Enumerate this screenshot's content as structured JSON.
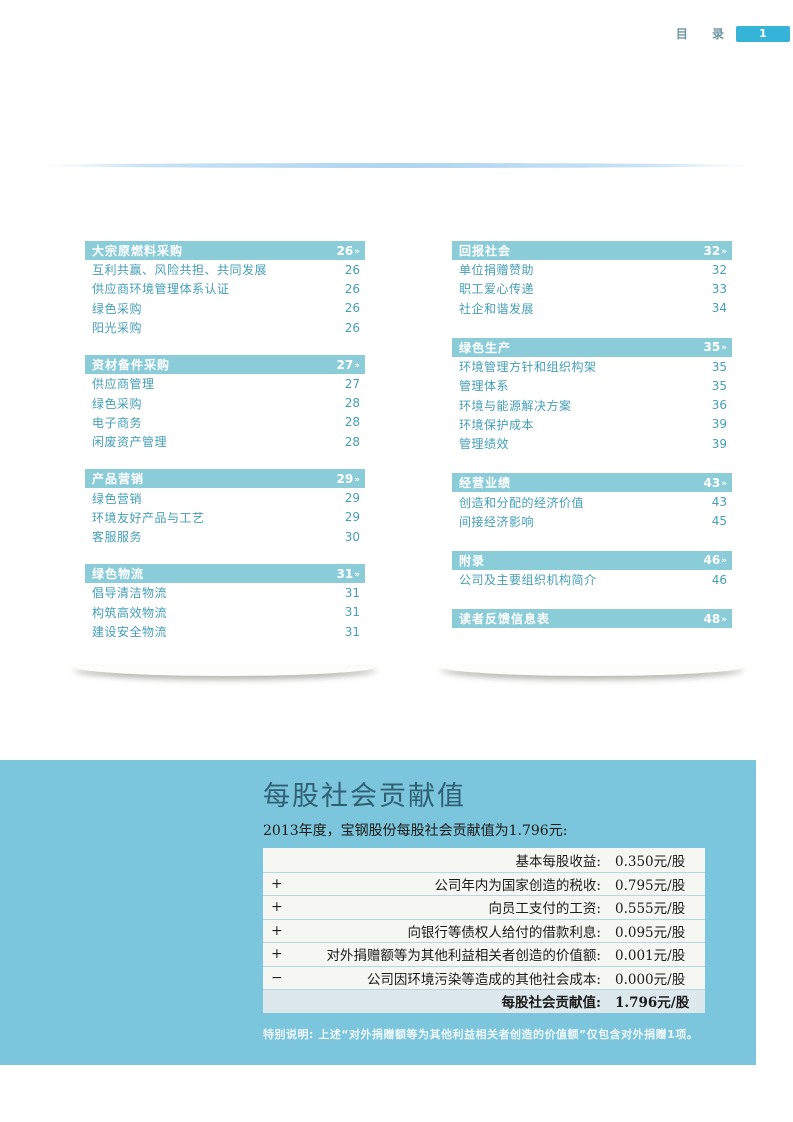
{
  "header": {
    "title": "目 录",
    "page_number": "1"
  },
  "toc": {
    "arrow": "»",
    "left": [
      {
        "title": "大宗原燃料采购",
        "page": "26",
        "items": [
          {
            "label": "互利共赢、风险共担、共同发展",
            "page": "26"
          },
          {
            "label": "供应商环境管理体系认证",
            "page": "26"
          },
          {
            "label": "绿色采购",
            "page": "26"
          },
          {
            "label": "阳光采购",
            "page": "26"
          }
        ]
      },
      {
        "title": "资材备件采购",
        "page": "27",
        "items": [
          {
            "label": "供应商管理",
            "page": "27"
          },
          {
            "label": "绿色采购",
            "page": "28"
          },
          {
            "label": "电子商务",
            "page": "28"
          },
          {
            "label": "闲废资产管理",
            "page": "28"
          }
        ]
      },
      {
        "title": "产品营销",
        "page": "29",
        "items": [
          {
            "label": "绿色营销",
            "page": "29"
          },
          {
            "label": "环境友好产品与工艺",
            "page": "29"
          },
          {
            "label": "客服服务",
            "page": "30"
          }
        ]
      },
      {
        "title": "绿色物流",
        "page": "31",
        "items": [
          {
            "label": "倡导清洁物流",
            "page": "31"
          },
          {
            "label": "构筑高效物流",
            "page": "31"
          },
          {
            "label": "建设安全物流",
            "page": "31"
          }
        ]
      }
    ],
    "right": [
      {
        "title": "回报社会",
        "page": "32",
        "items": [
          {
            "label": "单位捐赠赞助",
            "page": "32"
          },
          {
            "label": "职工爱心传递",
            "page": "33"
          },
          {
            "label": "社企和谐发展",
            "page": "34"
          }
        ]
      },
      {
        "title": "绿色生产",
        "page": "35",
        "items": [
          {
            "label": "环境管理方针和组织构架",
            "page": "35"
          },
          {
            "label": "管理体系",
            "page": "35"
          },
          {
            "label": "环境与能源解决方案",
            "page": "36"
          },
          {
            "label": "环境保护成本",
            "page": "39"
          },
          {
            "label": "管理绩效",
            "page": "39"
          }
        ]
      },
      {
        "title": "经营业绩",
        "page": "43",
        "items": [
          {
            "label": "创造和分配的经济价值",
            "page": "43"
          },
          {
            "label": "间接经济影响",
            "page": "45"
          }
        ]
      },
      {
        "title": "附录",
        "page": "46",
        "items": [
          {
            "label": "公司及主要组织机构简介",
            "page": "46"
          }
        ]
      },
      {
        "title": "读者反馈信息表",
        "page": "48",
        "items": []
      }
    ]
  },
  "contribution": {
    "title": "每股社会贡献值",
    "intro": "2013年度，宝钢股份每股社会贡献值为1.796元:",
    "rows": [
      {
        "sign": "",
        "label": "基本每股收益:",
        "value": "0.350元/股"
      },
      {
        "sign": "+",
        "label": "公司年内为国家创造的税收:",
        "value": "0.795元/股"
      },
      {
        "sign": "+",
        "label": "向员工支付的工资:",
        "value": "0.555元/股"
      },
      {
        "sign": "+",
        "label": "向银行等债权人给付的借款利息:",
        "value": "0.095元/股"
      },
      {
        "sign": "+",
        "label": "对外捐赠额等为其他利益相关者创造的价值额:",
        "value": "0.001元/股"
      },
      {
        "sign": "−",
        "label": "公司因环境污染等造成的其他社会成本:",
        "value": "0.000元/股"
      },
      {
        "sign": "",
        "label": "每股社会贡献值:",
        "value": "1.796元/股"
      }
    ],
    "note": "特别说明: 上述“对外捐赠额等为其他利益相关者创造的价值额”仅包含对外捐赠1项。"
  },
  "colors": {
    "section_bar_teal": "#8bccd9",
    "toc_item_teal": "#459fb6",
    "badge_blue": "#35b4d8",
    "band_teal": "#7bc6dc",
    "band_title": "#2f6073",
    "table_bg": "#f6f7f3",
    "table_divider": "#b4d7e1",
    "total_row_bg": "#dde8ed"
  }
}
